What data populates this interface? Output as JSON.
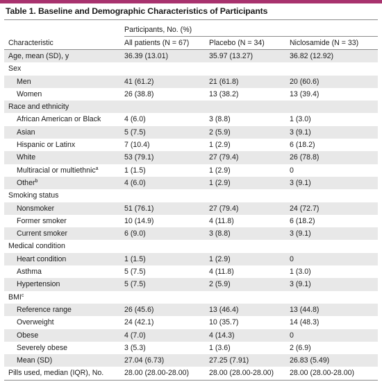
{
  "title": "Table 1. Baseline and Demographic Characteristics of Participants",
  "header": {
    "group": "Participants, No. (%)",
    "characteristic": "Characteristic",
    "columns": [
      "All patients (N = 67)",
      "Placebo (N = 34)",
      "Niclosamide (N = 33)"
    ]
  },
  "rows": [
    {
      "label": "Age, mean (SD), y",
      "values": [
        "36.39 (13.01)",
        "35.97 (13.27)",
        "36.82 (12.92)"
      ]
    },
    {
      "label": "Sex",
      "values": [
        "",
        "",
        ""
      ]
    },
    {
      "label": "Men",
      "values": [
        "41 (61.2)",
        "21 (61.8)",
        "20 (60.6)"
      ]
    },
    {
      "label": "Women",
      "values": [
        "26 (38.8)",
        "13 (38.2)",
        "13 (39.4)"
      ]
    },
    {
      "label": "Race and ethnicity",
      "values": [
        "",
        "",
        ""
      ]
    },
    {
      "label": "African American or Black",
      "values": [
        "4 (6.0)",
        "3 (8.8)",
        "1 (3.0)"
      ]
    },
    {
      "label": "Asian",
      "values": [
        "5 (7.5)",
        "2 (5.9)",
        "3 (9.1)"
      ]
    },
    {
      "label": "Hispanic or Latinx",
      "values": [
        "7 (10.4)",
        "1 (2.9)",
        "6 (18.2)"
      ]
    },
    {
      "label": "White",
      "values": [
        "53 (79.1)",
        "27 (79.4)",
        "26 (78.8)"
      ]
    },
    {
      "label": "Multiracial or multiethnic",
      "sup": "a",
      "values": [
        "1 (1.5)",
        "1 (2.9)",
        "0"
      ]
    },
    {
      "label": "Other",
      "sup": "b",
      "values": [
        "4 (6.0)",
        "1 (2.9)",
        "3 (9.1)"
      ]
    },
    {
      "label": "Smoking status",
      "values": [
        "",
        "",
        ""
      ]
    },
    {
      "label": "Nonsmoker",
      "values": [
        "51 (76.1)",
        "27 (79.4)",
        "24 (72.7)"
      ]
    },
    {
      "label": "Former smoker",
      "values": [
        "10 (14.9)",
        "4 (11.8)",
        "6 (18.2)"
      ]
    },
    {
      "label": "Current smoker",
      "values": [
        "6 (9.0)",
        "3 (8.8)",
        "3 (9.1)"
      ]
    },
    {
      "label": "Medical condition",
      "values": [
        "",
        "",
        ""
      ]
    },
    {
      "label": "Heart condition",
      "values": [
        "1 (1.5)",
        "1 (2.9)",
        "0"
      ]
    },
    {
      "label": "Asthma",
      "values": [
        "5 (7.5)",
        "4 (11.8)",
        "1 (3.0)"
      ]
    },
    {
      "label": "Hypertension",
      "values": [
        "5 (7.5)",
        "2 (5.9)",
        "3 (9.1)"
      ]
    },
    {
      "label": "BMI",
      "sup": "c",
      "values": [
        "",
        "",
        ""
      ]
    },
    {
      "label": "Reference range",
      "values": [
        "26 (45.6)",
        "13 (46.4)",
        "13 (44.8)"
      ]
    },
    {
      "label": "Overweight",
      "values": [
        "24 (42.1)",
        "10 (35.7)",
        "14 (48.3)"
      ]
    },
    {
      "label": "Obese",
      "values": [
        "4 (7.0)",
        "4 (14.3)",
        "0"
      ]
    },
    {
      "label": "Severely obese",
      "values": [
        "3 (5.3)",
        "1 (3.6)",
        "2 (6.9)"
      ]
    },
    {
      "label": "Mean (SD)",
      "values": [
        "27.04 (6.73)",
        "27.25 (7.91)",
        "26.83 (5.49)"
      ]
    },
    {
      "label": "Pills used, median (IQR), No.",
      "values": [
        "28.00 (28.00-28.00)",
        "28.00 (28.00-28.00)",
        "28.00 (28.00-28.00)"
      ]
    }
  ]
}
